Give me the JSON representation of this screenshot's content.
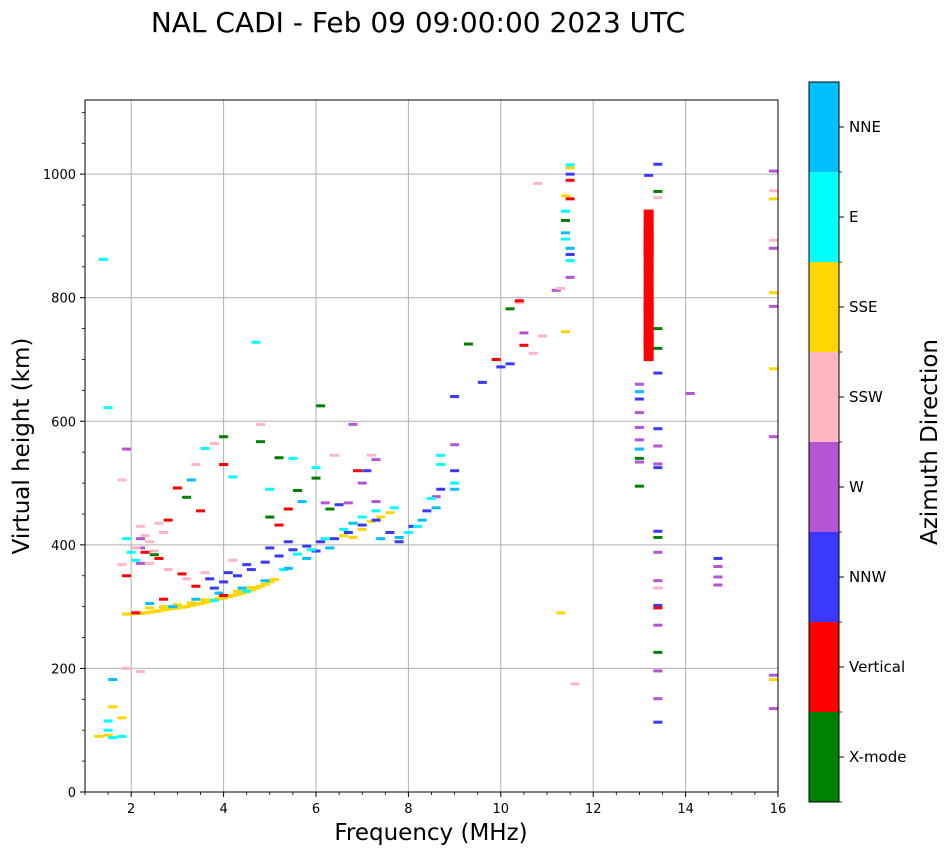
{
  "chart_data": {
    "type": "scatter",
    "title": "NAL CADI - Feb 09 09:00:00 2023 UTC",
    "xlabel": "Frequency (MHz)",
    "ylabel": "Virtual height (km)",
    "colorbar_label": "Azimuth Direction",
    "xlim": [
      1,
      16
    ],
    "ylim": [
      0,
      1120
    ],
    "xticks": [
      2,
      4,
      6,
      8,
      10,
      12,
      14,
      16
    ],
    "yticks": [
      0,
      200,
      400,
      600,
      800,
      1000
    ],
    "grid": true,
    "categories": [
      "X-mode",
      "Vertical",
      "NNW",
      "W",
      "SSW",
      "SSE",
      "E",
      "NNE"
    ],
    "category_colors": {
      "X-mode": "#008000",
      "Vertical": "#ff0000",
      "NNW": "#3a3aff",
      "W": "#b455d6",
      "SSW": "#ffb6c1",
      "SSE": "#ffd700",
      "E": "#00ffff",
      "NNE": "#00bfff"
    },
    "series": [
      {
        "name": "SSE",
        "points": [
          [
            1.9,
            288
          ],
          [
            2.0,
            288
          ],
          [
            2.1,
            290
          ],
          [
            2.2,
            289
          ],
          [
            2.3,
            290
          ],
          [
            2.4,
            291
          ],
          [
            2.5,
            292
          ],
          [
            2.6,
            293
          ],
          [
            2.7,
            295
          ],
          [
            2.8,
            296
          ],
          [
            2.9,
            297
          ],
          [
            3.0,
            298
          ],
          [
            3.1,
            299
          ],
          [
            3.2,
            300
          ],
          [
            3.3,
            302
          ],
          [
            3.4,
            304
          ],
          [
            3.5,
            305
          ],
          [
            3.6,
            307
          ],
          [
            3.7,
            309
          ],
          [
            3.8,
            311
          ],
          [
            3.9,
            313
          ],
          [
            4.0,
            314
          ],
          [
            4.1,
            316
          ],
          [
            4.2,
            318
          ],
          [
            4.3,
            320
          ],
          [
            4.4,
            322
          ],
          [
            4.5,
            324
          ],
          [
            4.6,
            327
          ],
          [
            4.7,
            330
          ],
          [
            4.8,
            333
          ],
          [
            4.9,
            336
          ],
          [
            5.0,
            340
          ],
          [
            5.1,
            344
          ],
          [
            2.4,
            298
          ],
          [
            2.7,
            300
          ],
          [
            3.0,
            303
          ],
          [
            3.3,
            306
          ],
          [
            3.6,
            311
          ],
          [
            4.0,
            318
          ],
          [
            4.3,
            325
          ],
          [
            4.6,
            331
          ],
          [
            6.6,
            415
          ],
          [
            6.8,
            412
          ],
          [
            7.0,
            425
          ],
          [
            7.2,
            438
          ],
          [
            7.4,
            445
          ],
          [
            7.6,
            452
          ],
          [
            1.5,
            92
          ],
          [
            1.3,
            90
          ],
          [
            1.6,
            138
          ],
          [
            1.8,
            120
          ],
          [
            11.4,
            745
          ],
          [
            11.4,
            965
          ],
          [
            11.5,
            1010
          ],
          [
            11.3,
            290
          ],
          [
            15.9,
            960
          ],
          [
            15.9,
            808
          ],
          [
            15.9,
            685
          ],
          [
            15.9,
            182
          ]
        ]
      },
      {
        "name": "NNW",
        "points": [
          [
            3.8,
            330
          ],
          [
            4.0,
            340
          ],
          [
            4.3,
            350
          ],
          [
            4.6,
            360
          ],
          [
            4.9,
            372
          ],
          [
            5.2,
            382
          ],
          [
            5.5,
            392
          ],
          [
            5.8,
            398
          ],
          [
            6.1,
            405
          ],
          [
            6.4,
            410
          ],
          [
            6.7,
            420
          ],
          [
            7.0,
            432
          ],
          [
            7.3,
            440
          ],
          [
            7.6,
            420
          ],
          [
            7.8,
            405
          ],
          [
            8.1,
            430
          ],
          [
            8.4,
            455
          ],
          [
            8.7,
            490
          ],
          [
            9.0,
            520
          ],
          [
            3.7,
            345
          ],
          [
            4.1,
            355
          ],
          [
            4.5,
            368
          ],
          [
            5.0,
            395
          ],
          [
            5.4,
            405
          ],
          [
            6.0,
            390
          ],
          [
            6.5,
            465
          ],
          [
            7.1,
            520
          ],
          [
            9.6,
            663
          ],
          [
            10.0,
            688
          ],
          [
            10.2,
            693
          ],
          [
            9.0,
            640
          ],
          [
            11.5,
            1000
          ],
          [
            11.5,
            870
          ],
          [
            13.0,
            636
          ],
          [
            13.2,
            998
          ],
          [
            13.2,
            910
          ],
          [
            13.2,
            852
          ],
          [
            13.2,
            812
          ],
          [
            13.2,
            760
          ],
          [
            13.4,
            1016
          ],
          [
            13.4,
            678
          ],
          [
            13.4,
            588
          ],
          [
            13.4,
            525
          ],
          [
            13.4,
            422
          ],
          [
            13.4,
            302
          ],
          [
            13.4,
            113
          ],
          [
            14.7,
            378
          ]
        ]
      },
      {
        "name": "W",
        "points": [
          [
            6.7,
            468
          ],
          [
            7.0,
            500
          ],
          [
            7.3,
            470
          ],
          [
            6.2,
            468
          ],
          [
            6.8,
            595
          ],
          [
            7.3,
            538
          ],
          [
            8.6,
            478
          ],
          [
            9.0,
            562
          ],
          [
            10.5,
            743
          ],
          [
            11.2,
            812
          ],
          [
            11.5,
            833
          ],
          [
            13.0,
            660
          ],
          [
            13.0,
            614
          ],
          [
            13.0,
            590
          ],
          [
            13.0,
            570
          ],
          [
            13.0,
            534
          ],
          [
            13.4,
            560
          ],
          [
            13.4,
            531
          ],
          [
            13.4,
            388
          ],
          [
            13.4,
            342
          ],
          [
            13.4,
            270
          ],
          [
            13.4,
            196
          ],
          [
            13.4,
            151
          ],
          [
            14.7,
            365
          ],
          [
            14.7,
            348
          ],
          [
            14.7,
            335
          ],
          [
            14.1,
            645
          ],
          [
            15.9,
            1005
          ],
          [
            15.9,
            880
          ],
          [
            15.9,
            786
          ],
          [
            15.9,
            575
          ],
          [
            15.9,
            189
          ],
          [
            15.9,
            135
          ],
          [
            2.2,
            410
          ],
          [
            2.2,
            395
          ],
          [
            2.2,
            370
          ],
          [
            1.9,
            555
          ]
        ]
      },
      {
        "name": "SSW",
        "points": [
          [
            2.2,
            430
          ],
          [
            2.3,
            415
          ],
          [
            2.4,
            405
          ],
          [
            2.1,
            395
          ],
          [
            2.5,
            390
          ],
          [
            2.6,
            435
          ],
          [
            2.7,
            420
          ],
          [
            2.4,
            370
          ],
          [
            2.8,
            360
          ],
          [
            3.2,
            345
          ],
          [
            3.6,
            355
          ],
          [
            4.2,
            375
          ],
          [
            2.2,
            195
          ],
          [
            1.9,
            200
          ],
          [
            10.4,
            792
          ],
          [
            10.7,
            710
          ],
          [
            10.9,
            738
          ],
          [
            10.8,
            985
          ],
          [
            11.3,
            815
          ],
          [
            11.6,
            175
          ],
          [
            15.9,
            973
          ],
          [
            15.9,
            893
          ],
          [
            13.4,
            962
          ],
          [
            13.4,
            330
          ],
          [
            4.8,
            595
          ],
          [
            3.8,
            564
          ],
          [
            3.4,
            530
          ],
          [
            6.4,
            545
          ],
          [
            7.2,
            545
          ],
          [
            1.8,
            368
          ],
          [
            1.8,
            505
          ]
        ]
      },
      {
        "name": "E",
        "points": [
          [
            1.5,
            115
          ],
          [
            1.5,
            100
          ],
          [
            1.6,
            88
          ],
          [
            1.8,
            90
          ],
          [
            1.4,
            862
          ],
          [
            1.5,
            622
          ],
          [
            1.9,
            410
          ],
          [
            2.0,
            388
          ],
          [
            2.1,
            375
          ],
          [
            4.5,
            325
          ],
          [
            3.8,
            310
          ],
          [
            5.3,
            360
          ],
          [
            5.6,
            385
          ],
          [
            5.9,
            392
          ],
          [
            6.2,
            410
          ],
          [
            6.6,
            425
          ],
          [
            7.0,
            445
          ],
          [
            7.3,
            455
          ],
          [
            7.7,
            460
          ],
          [
            8.0,
            420
          ],
          [
            8.2,
            430
          ],
          [
            8.5,
            475
          ],
          [
            8.7,
            530
          ],
          [
            8.7,
            545
          ],
          [
            9.0,
            500
          ],
          [
            4.7,
            728
          ],
          [
            3.6,
            556
          ],
          [
            4.2,
            510
          ],
          [
            5.0,
            490
          ],
          [
            5.5,
            540
          ],
          [
            6.0,
            525
          ],
          [
            11.4,
            940
          ],
          [
            11.4,
            895
          ],
          [
            11.5,
            1015
          ],
          [
            11.5,
            860
          ]
        ]
      },
      {
        "name": "NNE",
        "points": [
          [
            2.4,
            305
          ],
          [
            2.9,
            300
          ],
          [
            3.4,
            312
          ],
          [
            3.9,
            322
          ],
          [
            4.4,
            330
          ],
          [
            4.9,
            342
          ],
          [
            5.4,
            362
          ],
          [
            5.8,
            378
          ],
          [
            6.3,
            395
          ],
          [
            6.8,
            435
          ],
          [
            7.4,
            410
          ],
          [
            7.8,
            412
          ],
          [
            8.3,
            440
          ],
          [
            8.6,
            460
          ],
          [
            9.0,
            490
          ],
          [
            11.4,
            905
          ],
          [
            11.5,
            880
          ],
          [
            1.6,
            182
          ],
          [
            3.3,
            505
          ],
          [
            5.7,
            470
          ],
          [
            13.0,
            648
          ],
          [
            13.0,
            555
          ]
        ]
      },
      {
        "name": "Vertical",
        "points": [
          [
            2.3,
            388
          ],
          [
            2.6,
            378
          ],
          [
            3.1,
            353
          ],
          [
            3.4,
            333
          ],
          [
            3.0,
            492
          ],
          [
            4.0,
            530
          ],
          [
            6.9,
            520
          ],
          [
            9.9,
            700
          ],
          [
            10.4,
            795
          ],
          [
            10.5,
            723
          ],
          [
            11.5,
            990
          ],
          [
            11.5,
            960
          ],
          [
            13.4,
            298
          ],
          [
            2.7,
            312
          ],
          [
            4.0,
            318
          ],
          [
            5.2,
            432
          ],
          [
            5.4,
            458
          ],
          [
            3.5,
            455
          ],
          [
            2.8,
            440
          ],
          [
            2.1,
            290
          ],
          [
            1.9,
            350
          ]
        ]
      },
      {
        "name": "X-mode",
        "points": [
          [
            2.5,
            384
          ],
          [
            3.2,
            477
          ],
          [
            4.0,
            575
          ],
          [
            4.8,
            567
          ],
          [
            5.2,
            541
          ],
          [
            5.6,
            488
          ],
          [
            6.1,
            625
          ],
          [
            6.3,
            458
          ],
          [
            9.3,
            725
          ],
          [
            10.2,
            782
          ],
          [
            11.4,
            925
          ],
          [
            13.0,
            540
          ],
          [
            13.0,
            495
          ],
          [
            13.4,
            750
          ],
          [
            13.4,
            718
          ],
          [
            13.4,
            412
          ],
          [
            13.4,
            226
          ],
          [
            13.4,
            972
          ],
          [
            6.0,
            508
          ],
          [
            5.0,
            445
          ]
        ]
      },
      {
        "name": "Vertical-block",
        "category": "Vertical",
        "points": [
          [
            13.2,
            720
          ],
          [
            13.2,
            740
          ],
          [
            13.2,
            770
          ],
          [
            13.2,
            790
          ],
          [
            13.2,
            830
          ],
          [
            13.2,
            870
          ],
          [
            13.2,
            890
          ],
          [
            13.2,
            920
          ]
        ]
      }
    ]
  }
}
